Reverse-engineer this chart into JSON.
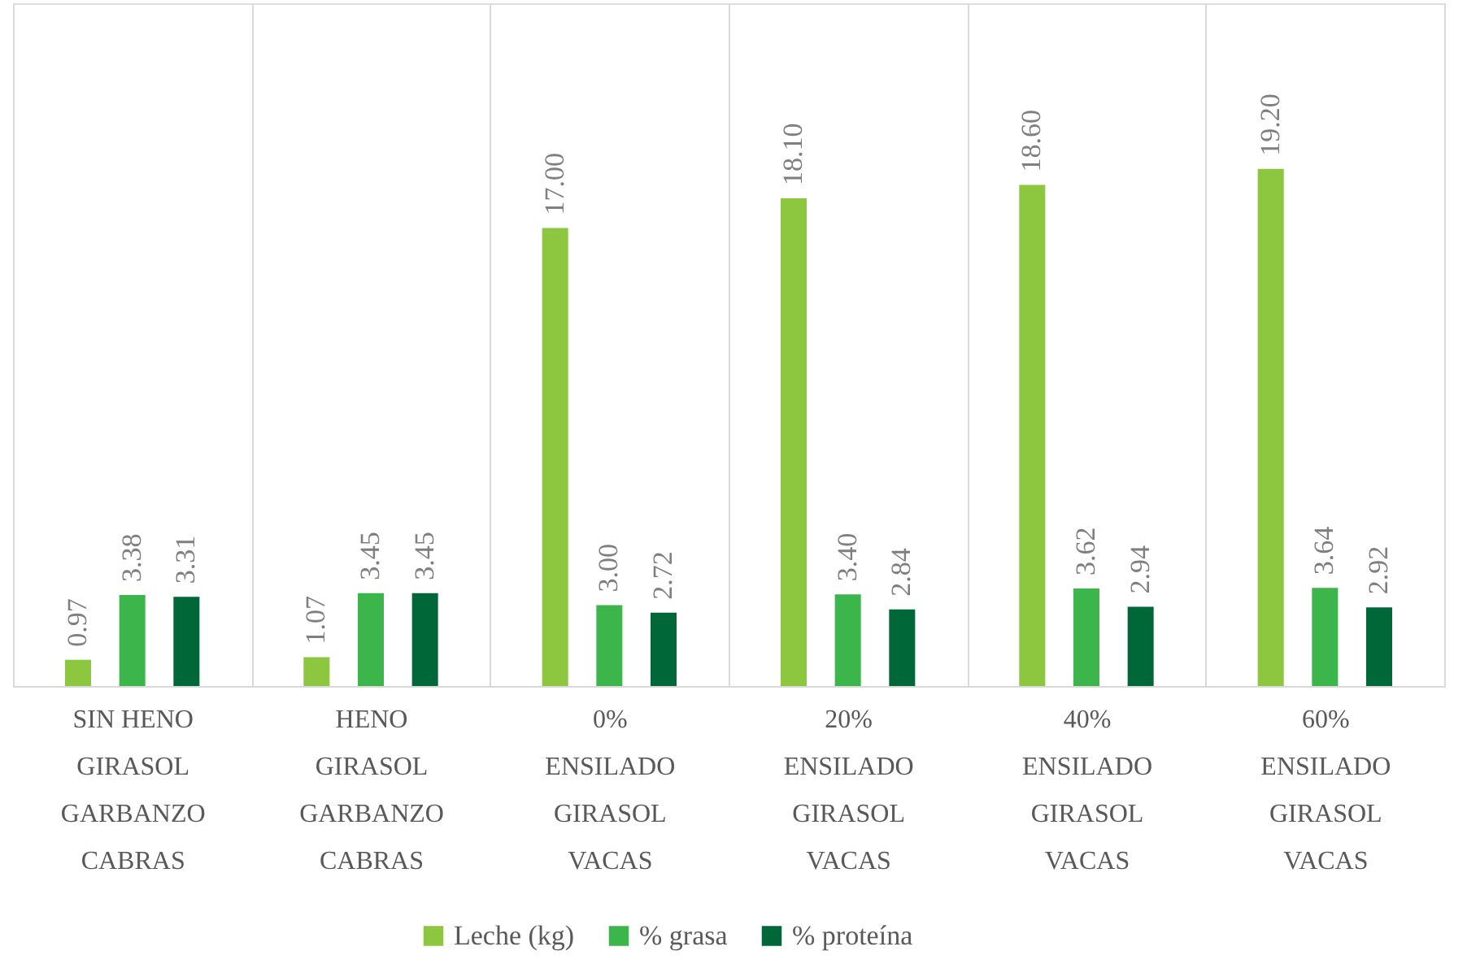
{
  "chart_data": {
    "type": "bar",
    "categories": [
      "SIN HENO GIRASOL GARBANZO CABRAS",
      "HENO GIRASOL GARBANZO CABRAS",
      "0% ENSILADO GIRASOL VACAS",
      "20% ENSILADO GIRASOL VACAS",
      "40% ENSILADO GIRASOL VACAS",
      "60% ENSILADO GIRASOL VACAS"
    ],
    "series": [
      {
        "name": "Leche (kg)",
        "color": "#8dc63f",
        "values": [
          0.97,
          1.07,
          17.0,
          18.1,
          18.6,
          19.2
        ],
        "value_labels": [
          "0.97",
          "1.07",
          "17.00",
          "18.10",
          "18.60",
          "19.20"
        ]
      },
      {
        "name": "% grasa",
        "color": "#3cb54a",
        "values": [
          3.38,
          3.45,
          3.0,
          3.4,
          3.62,
          3.64
        ],
        "value_labels": [
          "3.38",
          "3.45",
          "3.00",
          "3.40",
          "3.62",
          "3.64"
        ]
      },
      {
        "name": "% proteína",
        "color": "#006838",
        "values": [
          3.31,
          3.45,
          2.72,
          2.84,
          2.94,
          2.92
        ],
        "value_labels": [
          "3.31",
          "3.45",
          "2.72",
          "2.84",
          "2.94",
          "2.92"
        ]
      }
    ],
    "grid": "x",
    "legend": "bottom",
    "tick_labels": "x"
  }
}
